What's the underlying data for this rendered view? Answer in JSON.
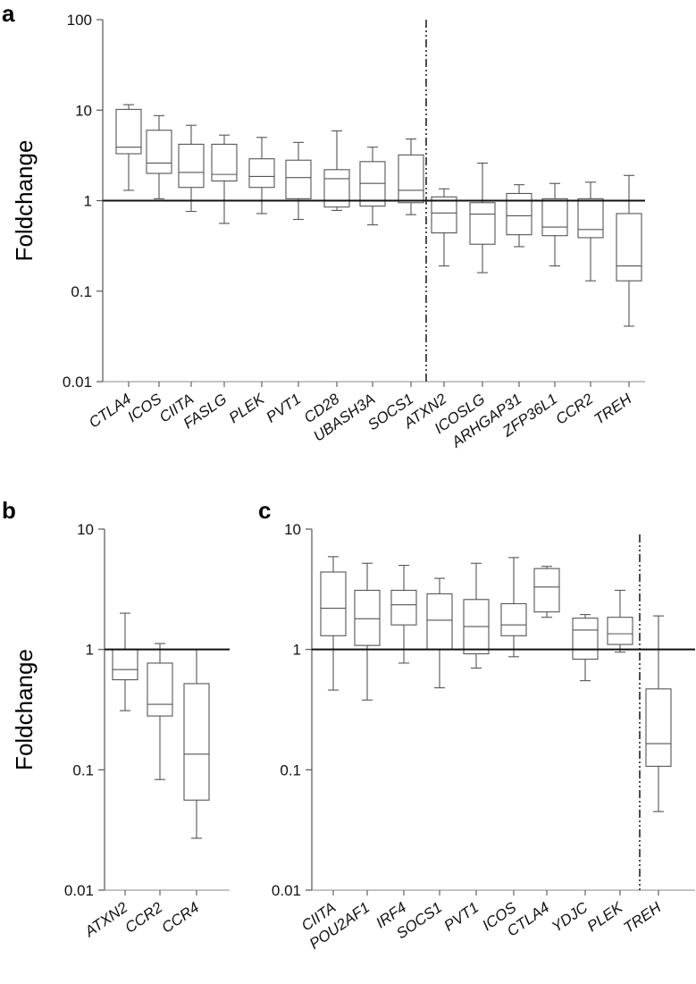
{
  "chart_data": [
    {
      "id": "a",
      "panel_label": "a",
      "type": "box",
      "ylabel": "Foldchange",
      "yscale": "log",
      "ylim": [
        0.01,
        100
      ],
      "yticks": [
        {
          "value": 0.01,
          "label": "0.01"
        },
        {
          "value": 0.1,
          "label": "0.1"
        },
        {
          "value": 1,
          "label": "1"
        },
        {
          "value": 10,
          "label": "10"
        },
        {
          "value": 100,
          "label": "100"
        }
      ],
      "reference_line": 1,
      "divider_after_index": 8,
      "categories": [
        "CTLA4",
        "ICOS",
        "CIITA",
        "FASLG",
        "PLEK",
        "PVT1",
        "CD28",
        "UBASH3A",
        "SOCS1",
        "ATXN2",
        "ICOSLG",
        "ARHGAP31",
        "ZFP36L1",
        "CCR2",
        "TREH"
      ],
      "boxes": [
        {
          "min": 1.3,
          "q1": 3.3,
          "median": 3.9,
          "q3": 10.2,
          "max": 11.5
        },
        {
          "min": 1.05,
          "q1": 2.0,
          "median": 2.6,
          "q3": 6.0,
          "max": 8.7
        },
        {
          "min": 0.76,
          "q1": 1.4,
          "median": 2.05,
          "q3": 4.2,
          "max": 6.8
        },
        {
          "min": 0.56,
          "q1": 1.65,
          "median": 1.95,
          "q3": 4.2,
          "max": 5.3
        },
        {
          "min": 0.72,
          "q1": 1.4,
          "median": 1.85,
          "q3": 2.9,
          "max": 5.0
        },
        {
          "min": 0.62,
          "q1": 1.05,
          "median": 1.8,
          "q3": 2.8,
          "max": 4.4
        },
        {
          "min": 0.78,
          "q1": 0.85,
          "median": 1.75,
          "q3": 2.2,
          "max": 5.9
        },
        {
          "min": 0.54,
          "q1": 0.87,
          "median": 1.55,
          "q3": 2.7,
          "max": 3.9
        },
        {
          "min": 0.7,
          "q1": 0.95,
          "median": 1.3,
          "q3": 3.2,
          "max": 4.8
        },
        {
          "min": 0.19,
          "q1": 0.44,
          "median": 0.73,
          "q3": 1.1,
          "max": 1.35
        },
        {
          "min": 0.16,
          "q1": 0.33,
          "median": 0.71,
          "q3": 0.95,
          "max": 2.6
        },
        {
          "min": 0.31,
          "q1": 0.42,
          "median": 0.68,
          "q3": 1.2,
          "max": 1.5
        },
        {
          "min": 0.19,
          "q1": 0.41,
          "median": 0.51,
          "q3": 1.05,
          "max": 1.55
        },
        {
          "min": 0.13,
          "q1": 0.39,
          "median": 0.48,
          "q3": 1.05,
          "max": 1.6
        },
        {
          "min": 0.041,
          "q1": 0.13,
          "median": 0.19,
          "q3": 0.72,
          "max": 1.9
        }
      ]
    },
    {
      "id": "b",
      "panel_label": "b",
      "type": "box",
      "ylabel": "Foldchange",
      "yscale": "log",
      "ylim": [
        0.01,
        10
      ],
      "yticks": [
        {
          "value": 0.01,
          "label": "0.01"
        },
        {
          "value": 0.1,
          "label": "0.1"
        },
        {
          "value": 1,
          "label": "1"
        },
        {
          "value": 10,
          "label": "10"
        }
      ],
      "reference_line": 1,
      "divider_after_index": null,
      "categories": [
        "ATXN2",
        "CCR2",
        "CCR4"
      ],
      "boxes": [
        {
          "min": 0.31,
          "q1": 0.56,
          "median": 0.68,
          "q3": 1.0,
          "max": 2.0
        },
        {
          "min": 0.083,
          "q1": 0.28,
          "median": 0.35,
          "q3": 0.77,
          "max": 1.12
        },
        {
          "min": 0.027,
          "q1": 0.056,
          "median": 0.135,
          "q3": 0.52,
          "max": 1.0
        }
      ]
    },
    {
      "id": "c",
      "panel_label": "c",
      "type": "box",
      "ylabel": "",
      "yscale": "log",
      "ylim": [
        0.01,
        10
      ],
      "yticks": [
        {
          "value": 0.01,
          "label": "0.01"
        },
        {
          "value": 0.1,
          "label": "0.1"
        },
        {
          "value": 1,
          "label": "1"
        },
        {
          "value": 10,
          "label": "10"
        }
      ],
      "reference_line": 1,
      "divider_after_index": 8,
      "categories": [
        "CIITA",
        "POU2AF1",
        "IRF4",
        "SOCS1",
        "PVT1",
        "ICOS",
        "CTLA4",
        "YDJC",
        "PLEK",
        "TREH"
      ],
      "boxes": [
        {
          "min": 0.46,
          "q1": 1.3,
          "median": 2.2,
          "q3": 4.4,
          "max": 5.9
        },
        {
          "min": 0.38,
          "q1": 1.08,
          "median": 1.8,
          "q3": 3.1,
          "max": 5.2
        },
        {
          "min": 0.77,
          "q1": 1.6,
          "median": 2.35,
          "q3": 3.1,
          "max": 5.0
        },
        {
          "min": 0.48,
          "q1": 1.0,
          "median": 1.75,
          "q3": 2.9,
          "max": 3.9
        },
        {
          "min": 0.7,
          "q1": 0.92,
          "median": 1.55,
          "q3": 2.6,
          "max": 5.2
        },
        {
          "min": 0.87,
          "q1": 1.3,
          "median": 1.6,
          "q3": 2.4,
          "max": 5.8
        },
        {
          "min": 1.85,
          "q1": 2.05,
          "median": 3.3,
          "q3": 4.7,
          "max": 4.9
        },
        {
          "min": 0.55,
          "q1": 0.83,
          "median": 1.45,
          "q3": 1.82,
          "max": 1.95
        },
        {
          "min": 0.95,
          "q1": 1.1,
          "median": 1.35,
          "q3": 1.85,
          "max": 3.1
        },
        {
          "min": 0.045,
          "q1": 0.107,
          "median": 0.165,
          "q3": 0.47,
          "max": 1.9
        }
      ]
    }
  ]
}
